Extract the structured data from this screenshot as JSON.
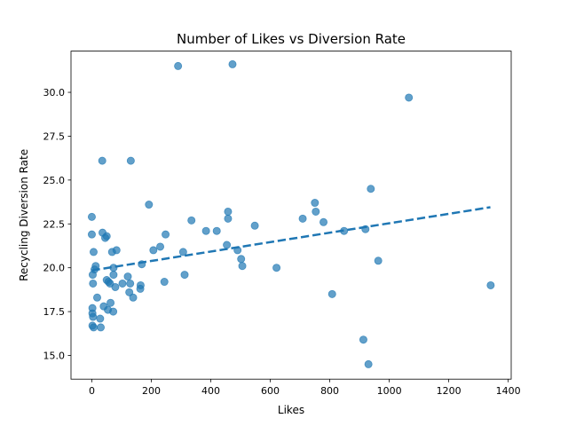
{
  "chart_data": {
    "type": "scatter",
    "title": "Number of Likes vs Diversion Rate",
    "xlabel": "Likes",
    "ylabel": "Recycling Diversion Rate",
    "xlim": [
      -70,
      1410
    ],
    "ylim": [
      13.65,
      32.35
    ],
    "xticks": [
      0,
      200,
      400,
      600,
      800,
      1000,
      1200,
      1400
    ],
    "yticks": [
      15.0,
      17.5,
      20.0,
      22.5,
      25.0,
      27.5,
      30.0
    ],
    "grid": false,
    "legend": "none",
    "colors": {
      "points": "#1f77b4",
      "trend": "#1f77b4"
    },
    "trendline": {
      "x": [
        0,
        1340
      ],
      "y": [
        19.85,
        23.45
      ]
    },
    "points": [
      [
        290,
        31.5
      ],
      [
        473,
        31.6
      ],
      [
        1066,
        29.7
      ],
      [
        35,
        26.1
      ],
      [
        131,
        26.1
      ],
      [
        938,
        24.5
      ],
      [
        750,
        23.7
      ],
      [
        753,
        23.2
      ],
      [
        192,
        23.6
      ],
      [
        458,
        23.2
      ],
      [
        458,
        22.8
      ],
      [
        709,
        22.8
      ],
      [
        779,
        22.6
      ],
      [
        335,
        22.7
      ],
      [
        0,
        22.9
      ],
      [
        0,
        21.9
      ],
      [
        548,
        22.4
      ],
      [
        384,
        22.1
      ],
      [
        420,
        22.1
      ],
      [
        848,
        22.1
      ],
      [
        920,
        22.2
      ],
      [
        36,
        22.0
      ],
      [
        45,
        21.7
      ],
      [
        50,
        21.8
      ],
      [
        248,
        21.9
      ],
      [
        230,
        21.2
      ],
      [
        207,
        21.0
      ],
      [
        307,
        20.9
      ],
      [
        454,
        21.3
      ],
      [
        490,
        21.0
      ],
      [
        6,
        20.9
      ],
      [
        68,
        20.9
      ],
      [
        83,
        21.0
      ],
      [
        963,
        20.4
      ],
      [
        502,
        20.5
      ],
      [
        9,
        19.9
      ],
      [
        13,
        20.1
      ],
      [
        73,
        20.0
      ],
      [
        168,
        20.2
      ],
      [
        506,
        20.1
      ],
      [
        621,
        20.0
      ],
      [
        3,
        19.6
      ],
      [
        4,
        19.1
      ],
      [
        50,
        19.3
      ],
      [
        56,
        19.2
      ],
      [
        61,
        19.1
      ],
      [
        73,
        19.6
      ],
      [
        79,
        18.9
      ],
      [
        103,
        19.1
      ],
      [
        121,
        19.5
      ],
      [
        129,
        19.1
      ],
      [
        164,
        19.0
      ],
      [
        244,
        19.2
      ],
      [
        312,
        19.6
      ],
      [
        1341,
        19.0
      ],
      [
        18,
        18.3
      ],
      [
        126,
        18.6
      ],
      [
        139,
        18.3
      ],
      [
        163,
        18.8
      ],
      [
        808,
        18.5
      ],
      [
        2,
        17.7
      ],
      [
        40,
        17.8
      ],
      [
        54,
        17.6
      ],
      [
        63,
        18.0
      ],
      [
        72,
        17.5
      ],
      [
        2,
        17.4
      ],
      [
        4,
        17.2
      ],
      [
        28,
        17.1
      ],
      [
        2,
        16.7
      ],
      [
        6,
        16.6
      ],
      [
        30,
        16.6
      ],
      [
        913,
        15.9
      ],
      [
        930,
        14.5
      ]
    ]
  }
}
